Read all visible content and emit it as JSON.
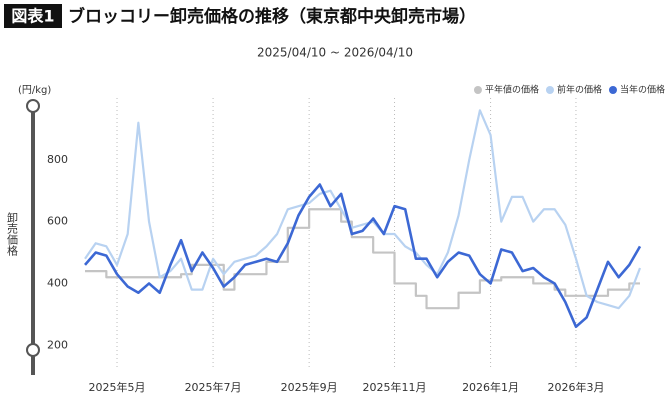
{
  "chart_data": {
    "type": "line",
    "title_tag": "図表1",
    "title": "ブロッコリー卸売価格の推移（東京都中央卸売市場）",
    "subtitle": "2025/04/10 ~ 2026/04/10",
    "y_unit": "(円/kg)",
    "y_label": "卸売価格",
    "categories": [
      null,
      null,
      null,
      "2025年5月",
      null,
      null,
      null,
      null,
      null,
      null,
      null,
      null,
      "2025年7月",
      null,
      null,
      null,
      null,
      null,
      null,
      null,
      null,
      "2025年9月",
      null,
      null,
      null,
      null,
      null,
      null,
      null,
      "2025年11月",
      null,
      null,
      null,
      null,
      null,
      null,
      null,
      null,
      "2026年1月",
      null,
      null,
      null,
      null,
      null,
      null,
      null,
      "2026年3月",
      null,
      null,
      null,
      null,
      null,
      null
    ],
    "series": [
      {
        "name": "平年値の価格",
        "color": "#c4c4c4",
        "step": true,
        "values": [
          440,
          440,
          420,
          420,
          420,
          420,
          420,
          420,
          420,
          430,
          460,
          460,
          460,
          380,
          430,
          430,
          430,
          470,
          470,
          580,
          580,
          640,
          640,
          640,
          600,
          550,
          550,
          500,
          500,
          400,
          400,
          360,
          320,
          320,
          320,
          370,
          370,
          410,
          410,
          420,
          420,
          420,
          400,
          400,
          380,
          360,
          360,
          360,
          360,
          380,
          380,
          400,
          400
        ]
      },
      {
        "name": "前年の価格",
        "color": "#b8d2f1",
        "values": [
          480,
          530,
          520,
          460,
          560,
          920,
          600,
          420,
          440,
          480,
          380,
          380,
          480,
          430,
          470,
          480,
          490,
          520,
          560,
          640,
          650,
          660,
          690,
          700,
          640,
          580,
          590,
          600,
          560,
          560,
          520,
          500,
          460,
          430,
          500,
          620,
          800,
          960,
          880,
          600,
          680,
          680,
          600,
          640,
          640,
          590,
          480,
          360,
          340,
          330,
          320,
          360,
          450
        ]
      },
      {
        "name": "当年の価格",
        "color": "#3c68d4",
        "values": [
          460,
          500,
          490,
          430,
          390,
          370,
          400,
          370,
          460,
          540,
          440,
          500,
          450,
          390,
          420,
          460,
          470,
          480,
          470,
          530,
          620,
          680,
          720,
          650,
          690,
          560,
          570,
          610,
          560,
          650,
          640,
          480,
          480,
          420,
          470,
          500,
          490,
          430,
          400,
          510,
          500,
          440,
          450,
          420,
          400,
          340,
          260,
          290,
          380,
          470,
          420,
          460,
          520
        ]
      }
    ],
    "ylim": [
      120,
      1000
    ],
    "yticks": [
      200,
      400,
      600,
      800
    ],
    "grid": true,
    "legend": "top-right"
  }
}
